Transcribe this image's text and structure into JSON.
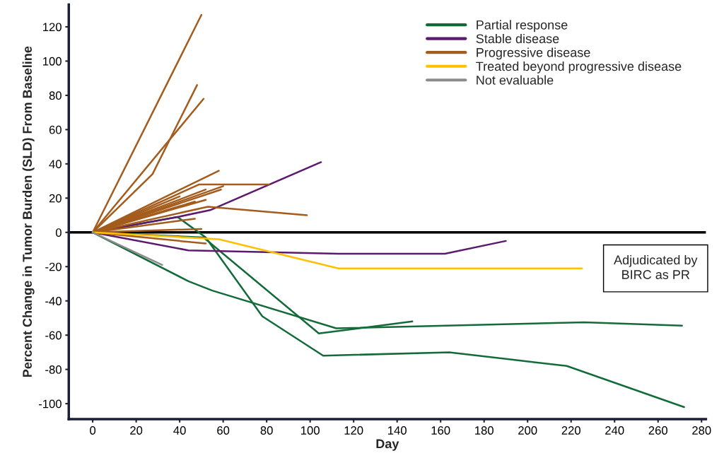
{
  "chart_data": {
    "type": "line",
    "xlabel": "Day",
    "ylabel": "Percent Change in Tumor Burden (SLD) From Baseline",
    "xlim": [
      -11,
      282
    ],
    "ylim": [
      -109,
      133
    ],
    "xticks": [
      0,
      20,
      40,
      60,
      80,
      100,
      120,
      140,
      160,
      180,
      200,
      220,
      240,
      260,
      280
    ],
    "yticks": [
      -100,
      -80,
      -60,
      -40,
      -20,
      0,
      20,
      40,
      60,
      80,
      100,
      120
    ],
    "grid": false,
    "legend": "top right",
    "line_style": "solid",
    "marker": "none",
    "ref_lines": [
      {
        "axis": "y",
        "value": 0,
        "color": "#000000"
      }
    ],
    "annotations": [
      {
        "text": "Adjudicated by\nBIRC as PR",
        "x": 225,
        "y": -21
      }
    ],
    "series": [
      {
        "name": "Partial response",
        "color": "#146b3a",
        "x": [
          0,
          39,
          52,
          78,
          106,
          164,
          218,
          272
        ],
        "values": [
          0,
          9,
          -3,
          -49,
          -72,
          -70,
          -78,
          -102
        ]
      },
      {
        "color": "#146b3a",
        "x": [
          0,
          51,
          104,
          147
        ],
        "values": [
          0,
          -3,
          -59,
          -52
        ]
      },
      {
        "color": "#146b3a",
        "x": [
          0,
          44,
          55,
          112,
          226,
          271
        ],
        "values": [
          0,
          -28.5,
          -34,
          -56,
          -52.5,
          -54.5
        ]
      },
      {
        "name": "Stable disease",
        "color": "#5c1a6e",
        "x": [
          0,
          39,
          54,
          105
        ],
        "values": [
          0,
          9,
          13,
          41
        ]
      },
      {
        "color": "#5c1a6e",
        "x": [
          0,
          44,
          113,
          162,
          190
        ],
        "values": [
          0,
          -10.5,
          -12.5,
          -12.5,
          -5
        ]
      },
      {
        "name": "Progressive disease",
        "color": "#a45c1c",
        "x": [
          0,
          50
        ],
        "values": [
          0,
          127
        ]
      },
      {
        "color": "#a45c1c",
        "x": [
          0,
          27.5,
          48
        ],
        "values": [
          0,
          34,
          86
        ]
      },
      {
        "color": "#a45c1c",
        "x": [
          0,
          51
        ],
        "values": [
          0,
          78
        ]
      },
      {
        "color": "#a45c1c",
        "x": [
          0,
          58
        ],
        "values": [
          0,
          36
        ]
      },
      {
        "color": "#a45c1c",
        "x": [
          0,
          49,
          81
        ],
        "values": [
          0,
          28,
          28
        ]
      },
      {
        "color": "#a45c1c",
        "x": [
          0,
          53,
          98.5
        ],
        "values": [
          0,
          15,
          10
        ]
      },
      {
        "color": "#a45c1c",
        "x": [
          0,
          60
        ],
        "values": [
          0,
          27
        ]
      },
      {
        "color": "#a45c1c",
        "x": [
          0,
          59
        ],
        "values": [
          0,
          25
        ]
      },
      {
        "color": "#a45c1c",
        "x": [
          0,
          52
        ],
        "values": [
          0,
          25
        ]
      },
      {
        "color": "#a45c1c",
        "x": [
          0,
          40
        ],
        "values": [
          0,
          21
        ]
      },
      {
        "color": "#a45c1c",
        "x": [
          0,
          52
        ],
        "values": [
          0,
          19
        ]
      },
      {
        "color": "#a45c1c",
        "x": [
          0,
          47
        ],
        "values": [
          0,
          18
        ]
      },
      {
        "color": "#a45c1c",
        "x": [
          0,
          47
        ],
        "values": [
          0,
          8
        ]
      },
      {
        "color": "#a45c1c",
        "x": [
          0,
          50
        ],
        "values": [
          0,
          2
        ]
      },
      {
        "color": "#a45c1c",
        "x": [
          0,
          52
        ],
        "values": [
          0,
          -6.5
        ]
      },
      {
        "name": "Treated beyond progressive disease",
        "color": "#ffc000",
        "x": [
          0,
          58,
          113,
          225
        ],
        "values": [
          0,
          -4,
          -21,
          -21
        ]
      },
      {
        "name": "Not evaluable",
        "color": "#8c8c8c",
        "x": [
          0,
          32
        ],
        "values": [
          0,
          -19
        ]
      }
    ]
  }
}
